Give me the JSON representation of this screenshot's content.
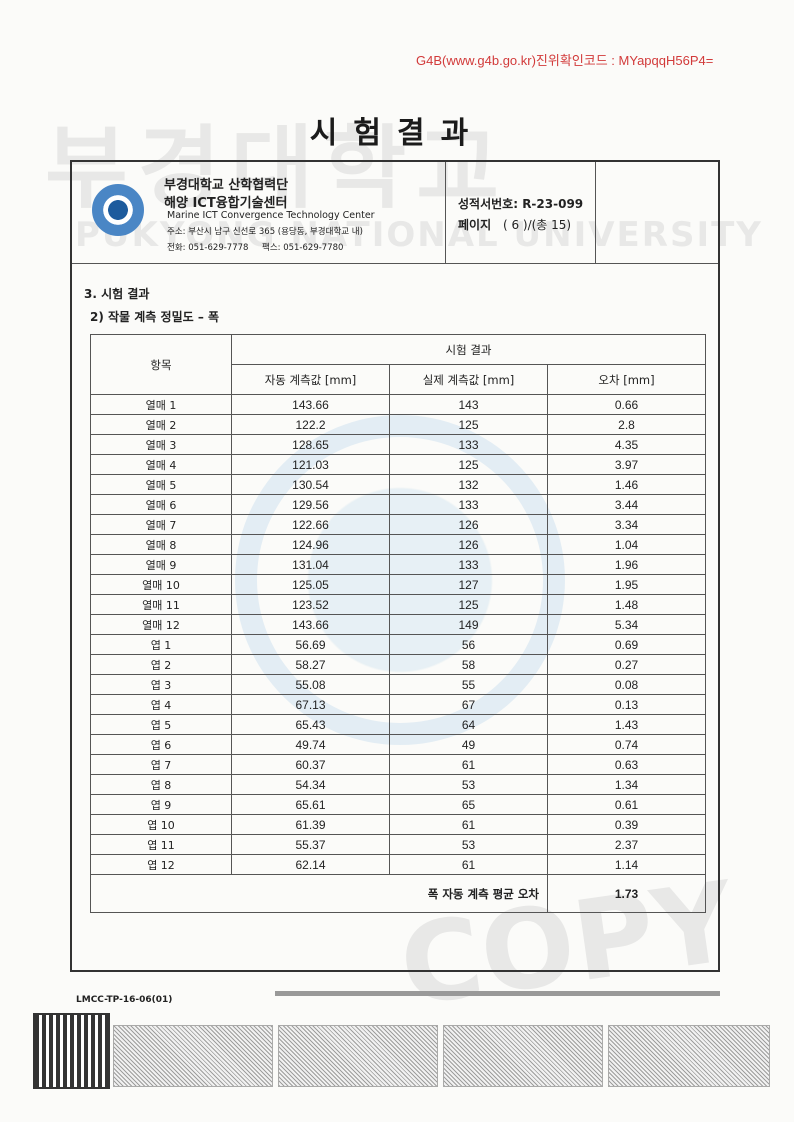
{
  "verification": "G4B(www.g4b.go.kr)진위확인코드 : MYapqqH56P4=",
  "title": "시험결과",
  "watermark": {
    "top": "부경대학교",
    "university": "PUKYONG NATIONAL UNIVERSITY",
    "copy": "COPY"
  },
  "header": {
    "org_line1": "부경대학교 산학협력단",
    "org_line2": "해양 ICT융합기술센터",
    "org_en": "Marine ICT Convergence Technology Center",
    "address": "주소: 부산시 남구 신선로 365 (용당동, 부경대학교 내)",
    "phone": "전화: 051-629-7778",
    "fax": "팩스: 051-629-7780",
    "report_no_label": "성적서번호:",
    "report_no": "R-23-099",
    "page_label": "페이지",
    "page": "( 6 )/(총 15)"
  },
  "section": "3. 시험 결과",
  "subsection": "2) 작물 계측 정밀도 – 폭",
  "table": {
    "item_header": "항목",
    "group_header": "시험 결과",
    "columns": [
      "자동 계측값 [mm]",
      "실제 계측값 [mm]",
      "오차 [mm]"
    ],
    "rows": [
      [
        "열매 1",
        "143.66",
        "143",
        "0.66"
      ],
      [
        "열매 2",
        "122.2",
        "125",
        "2.8"
      ],
      [
        "열매 3",
        "128.65",
        "133",
        "4.35"
      ],
      [
        "열매 4",
        "121.03",
        "125",
        "3.97"
      ],
      [
        "열매 5",
        "130.54",
        "132",
        "1.46"
      ],
      [
        "열매 6",
        "129.56",
        "133",
        "3.44"
      ],
      [
        "열매 7",
        "122.66",
        "126",
        "3.34"
      ],
      [
        "열매 8",
        "124.96",
        "126",
        "1.04"
      ],
      [
        "열매 9",
        "131.04",
        "133",
        "1.96"
      ],
      [
        "열매 10",
        "125.05",
        "127",
        "1.95"
      ],
      [
        "열매 11",
        "123.52",
        "125",
        "1.48"
      ],
      [
        "열매 12",
        "143.66",
        "149",
        "5.34"
      ],
      [
        "엽 1",
        "56.69",
        "56",
        "0.69"
      ],
      [
        "엽 2",
        "58.27",
        "58",
        "0.27"
      ],
      [
        "엽 3",
        "55.08",
        "55",
        "0.08"
      ],
      [
        "엽 4",
        "67.13",
        "67",
        "0.13"
      ],
      [
        "엽 5",
        "65.43",
        "64",
        "1.43"
      ],
      [
        "엽 6",
        "49.74",
        "49",
        "0.74"
      ],
      [
        "엽 7",
        "60.37",
        "61",
        "0.63"
      ],
      [
        "엽 8",
        "54.34",
        "53",
        "1.34"
      ],
      [
        "엽 9",
        "65.61",
        "65",
        "0.61"
      ],
      [
        "엽 10",
        "61.39",
        "61",
        "0.39"
      ],
      [
        "엽 11",
        "55.37",
        "53",
        "2.37"
      ],
      [
        "엽 12",
        "62.14",
        "61",
        "1.14"
      ]
    ],
    "total_label": "폭 자동 계측 평균 오차",
    "total_value": "1.73"
  },
  "form_code": "LMCC-TP-16-06(01)"
}
